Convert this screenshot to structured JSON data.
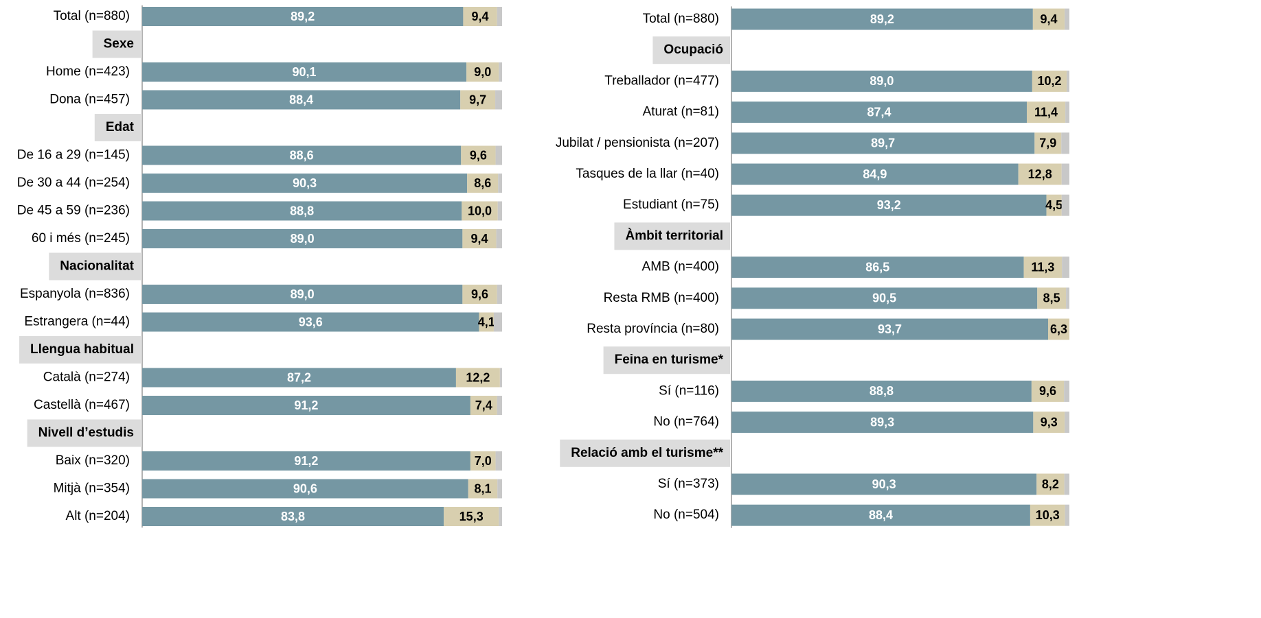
{
  "chart_data": [
    {
      "type": "stacked-bar",
      "xlim": [
        0,
        100
      ],
      "categories": [
        "Total (n=880)",
        "Sexe",
        "Home (n=423)",
        "Dona (n=457)",
        "Edat",
        "De 16 a 29 (n=145)",
        "De 30 a 44 (n=254)",
        "De 45 a 59 (n=236)",
        "60 i més (n=245)",
        "Nacionalitat",
        "Espanyola (n=836)",
        "Estrangera (n=44)",
        "Llengua habitual",
        "Català (n=274)",
        "Castellà (n=467)",
        "Nivell d’estudis",
        "Baix (n=320)",
        "Mitjà (n=354)",
        "Alt (n=204)"
      ],
      "series": [
        {
          "color": "#7597a3",
          "values": [
            89.2,
            null,
            90.1,
            88.4,
            null,
            88.6,
            90.3,
            88.8,
            89.0,
            null,
            89.0,
            93.6,
            null,
            87.2,
            91.2,
            null,
            91.2,
            90.6,
            83.8
          ],
          "value_labels": [
            "89,2",
            null,
            "90,1",
            "88,4",
            null,
            "88,6",
            "90,3",
            "88,8",
            "89,0",
            null,
            "89,0",
            "93,6",
            null,
            "87,2",
            "91,2",
            null,
            "91,2",
            "90,6",
            "83,8"
          ]
        },
        {
          "color": "#d8cfaf",
          "values": [
            9.4,
            null,
            9.0,
            9.7,
            null,
            9.6,
            8.6,
            10.0,
            9.4,
            null,
            9.6,
            4.1,
            null,
            12.2,
            7.4,
            null,
            7.0,
            8.1,
            15.3
          ],
          "value_labels": [
            "9,4",
            null,
            "9,0",
            "9,7",
            null,
            "9,6",
            "8,6",
            "10,0",
            "9,4",
            null,
            "9,6",
            "4,1",
            null,
            "12,2",
            "7,4",
            null,
            "7,0",
            "8,1",
            "15,3"
          ]
        },
        {
          "color": "#c8c8c8",
          "values": [
            1.4,
            null,
            0.9,
            1.9,
            null,
            1.8,
            1.1,
            1.2,
            1.6,
            null,
            1.4,
            2.3,
            null,
            0.6,
            1.4,
            null,
            1.8,
            1.3,
            0.9
          ]
        }
      ]
    },
    {
      "type": "stacked-bar",
      "xlim": [
        0,
        100
      ],
      "categories": [
        "Total (n=880)",
        "Ocupació",
        "Treballador (n=477)",
        "Aturat (n=81)",
        "Jubilat / pensionista (n=207)",
        "Tasques de la llar (n=40)",
        "Estudiant (n=75)",
        "Àmbit territorial",
        "AMB (n=400)",
        "Resta RMB (n=400)",
        "Resta província (n=80)",
        "Feina en turisme*",
        "Sí (n=116)",
        "No (n=764)",
        "Relació amb el turisme**",
        "Sí (n=373)",
        "No (n=504)"
      ],
      "series": [
        {
          "color": "#7597a3",
          "values": [
            89.2,
            null,
            89.0,
            87.4,
            89.7,
            84.9,
            93.2,
            null,
            86.5,
            90.5,
            93.7,
            null,
            88.8,
            89.3,
            null,
            90.3,
            88.4
          ],
          "value_labels": [
            "89,2",
            null,
            "89,0",
            "87,4",
            "89,7",
            "84,9",
            "93,2",
            null,
            "86,5",
            "90,5",
            "93,7",
            null,
            "88,8",
            "89,3",
            null,
            "90,3",
            "88,4"
          ]
        },
        {
          "color": "#d8cfaf",
          "values": [
            9.4,
            null,
            10.2,
            11.4,
            7.9,
            12.8,
            4.5,
            null,
            11.3,
            8.5,
            6.3,
            null,
            9.6,
            9.3,
            null,
            8.2,
            10.3
          ],
          "value_labels": [
            "9,4",
            null,
            "10,2",
            "11,4",
            "7,9",
            "12,8",
            "4,5",
            null,
            "11,3",
            "8,5",
            "6,3",
            null,
            "9,6",
            "9,3",
            null,
            "8,2",
            "10,3"
          ]
        },
        {
          "color": "#c8c8c8",
          "values": [
            1.4,
            null,
            0.8,
            1.2,
            2.4,
            2.3,
            2.3,
            null,
            2.2,
            1.0,
            0.0,
            null,
            1.6,
            1.4,
            null,
            1.5,
            1.3
          ]
        }
      ]
    }
  ]
}
